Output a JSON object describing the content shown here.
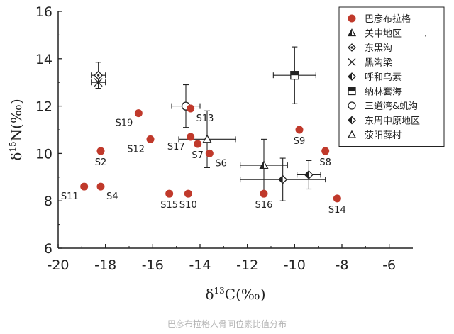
{
  "chart_data": {
    "type": "scatter",
    "xlabel": "δ13C(‰)",
    "ylabel": "δ15N(‰)",
    "xlim": [
      -20,
      -5
    ],
    "ylim": [
      6,
      16
    ],
    "xticks": [
      "-20",
      "-18",
      "-16",
      "-14",
      "-12",
      "-10",
      "-8",
      "-6"
    ],
    "xtick_values": [
      -20,
      -18,
      -16,
      -14,
      -12,
      -10,
      -8,
      -6
    ],
    "yticks": [
      "6",
      "8",
      "10",
      "12",
      "14",
      "16"
    ],
    "ytick_values": [
      6,
      8,
      10,
      12,
      14,
      16
    ],
    "grid": false,
    "legend_position": "top-right",
    "colors": {
      "samples": "#c0392b",
      "axis": "#222222",
      "marker": "#222222"
    },
    "samples": {
      "name": "巴彦布拉格",
      "points": [
        {
          "label": "S2",
          "x": -18.2,
          "y": 10.1,
          "anchor": "below"
        },
        {
          "label": "S4",
          "x": -18.2,
          "y": 8.6,
          "anchor": "below-right"
        },
        {
          "label": "S6",
          "x": -13.6,
          "y": 10.0,
          "anchor": "below-right"
        },
        {
          "label": "S7",
          "x": -14.1,
          "y": 10.4,
          "anchor": "below"
        },
        {
          "label": "S8",
          "x": -8.7,
          "y": 10.1,
          "anchor": "below"
        },
        {
          "label": "S9",
          "x": -9.8,
          "y": 11.0,
          "anchor": "below"
        },
        {
          "label": "S10",
          "x": -14.5,
          "y": 8.3,
          "anchor": "below"
        },
        {
          "label": "S11",
          "x": -18.9,
          "y": 8.6,
          "anchor": "below-left"
        },
        {
          "label": "S12",
          "x": -16.1,
          "y": 10.6,
          "anchor": "below-left"
        },
        {
          "label": "S13",
          "x": -14.4,
          "y": 11.9,
          "anchor": "below-right"
        },
        {
          "label": "S14",
          "x": -8.2,
          "y": 8.1,
          "anchor": "below"
        },
        {
          "label": "S15",
          "x": -15.3,
          "y": 8.3,
          "anchor": "below"
        },
        {
          "label": "S16",
          "x": -11.3,
          "y": 8.3,
          "anchor": "below"
        },
        {
          "label": "S17",
          "x": -14.4,
          "y": 10.7,
          "anchor": "below-left"
        },
        {
          "label": "S19",
          "x": -16.6,
          "y": 11.7,
          "anchor": "below-left"
        }
      ]
    },
    "series": [
      {
        "name": "关中地区",
        "marker": "half-triangle",
        "x": -11.3,
        "y": 9.5,
        "xerr": 1.0,
        "yerr": 1.1
      },
      {
        "name": "东黑沟",
        "marker": "dot-diamond",
        "x": -18.3,
        "y": 13.3,
        "xerr": 0.3,
        "yerr": 0.55
      },
      {
        "name": "黑沟梁",
        "marker": "x",
        "x": -18.3,
        "y": 13.0,
        "xerr": 0.3,
        "yerr": 0.25
      },
      {
        "name": "呼和乌素",
        "marker": "half-diamond",
        "x": -9.4,
        "y": 9.1,
        "xerr": 0.5,
        "yerr": 0.6
      },
      {
        "name": "纳林套海",
        "marker": "half-square",
        "x": -10.0,
        "y": 13.3,
        "xerr": 0.9,
        "yerr": 1.2
      },
      {
        "name": "三道湾&虮沟",
        "marker": "circle",
        "x": -14.6,
        "y": 12.0,
        "xerr": 0.6,
        "yerr": 0.9
      },
      {
        "name": "东周中原地区",
        "marker": "half-diamond",
        "x": -10.5,
        "y": 8.9,
        "xerr": 1.8,
        "yerr": 0.9
      },
      {
        "name": "荥阳薛村",
        "marker": "triangle",
        "x": -13.7,
        "y": 10.6,
        "xerr": 1.2,
        "yerr": 1.2
      }
    ],
    "legend_extra_mark": "."
  },
  "caption": "巴彦布拉格人骨同位素比值分布"
}
